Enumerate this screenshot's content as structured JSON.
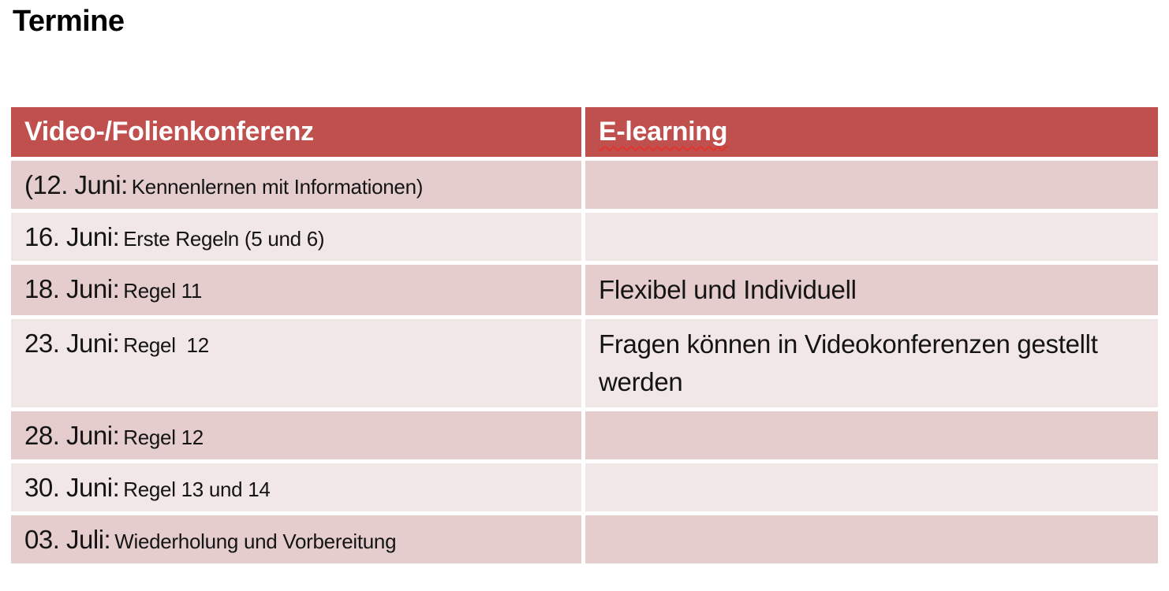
{
  "page": {
    "title": "Termine"
  },
  "colors": {
    "header_bg": "#BF504E",
    "header_text": "#FFFFFF",
    "row_dark": "#E5CDCE",
    "row_light": "#F2E7E7",
    "spellcheck": "#E0342C",
    "text": "#141414"
  },
  "table": {
    "columns": [
      {
        "label": "Video-/Folienkonferenz",
        "spellcheck_underline": false
      },
      {
        "label": "E-learning",
        "spellcheck_underline": true
      }
    ],
    "rows": [
      {
        "date": "(12. Juni:",
        "topic": "Kennenlernen mit Informationen)",
        "elearning": "",
        "band": "dark"
      },
      {
        "date": "16. Juni:",
        "topic": "Erste Regeln (5 und 6)",
        "elearning": "",
        "band": "light"
      },
      {
        "date": "18. Juni:",
        "topic": "Regel 11",
        "elearning": "Flexibel und Individuell",
        "band": "dark"
      },
      {
        "date": "23. Juni:",
        "topic": "Regel  12",
        "elearning": "Fragen können in Videokonferenzen gestellt werden",
        "band": "light"
      },
      {
        "date": "28. Juni:",
        "topic": "Regel 12",
        "elearning": "",
        "band": "dark"
      },
      {
        "date": "30. Juni:",
        "topic": "Regel 13 und 14",
        "elearning": "",
        "band": "light"
      },
      {
        "date": "03. Juli:",
        "topic": "Wiederholung und Vorbereitung",
        "elearning": "",
        "band": "dark"
      }
    ]
  }
}
